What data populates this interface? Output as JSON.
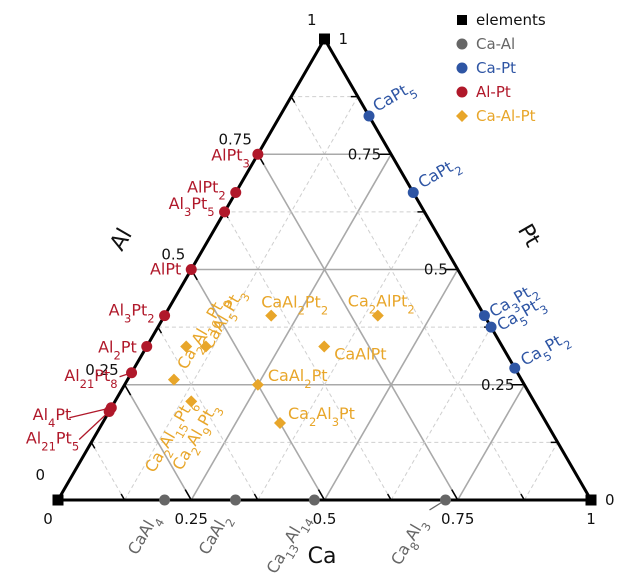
{
  "chart_data": {
    "type": "scatter",
    "subtype": "ternary",
    "axes": {
      "bottom": {
        "label": "Ca",
        "ticks": [
          "0",
          "0.25",
          "0.5",
          "0.75",
          "1"
        ]
      },
      "right": {
        "label": "Pt",
        "ticks": [
          "0",
          "0.25",
          "0.5",
          "0.75",
          "1"
        ]
      },
      "left": {
        "label": "Al",
        "ticks": [
          "1",
          "0.75",
          "0.5",
          "0.25",
          "0"
        ]
      }
    },
    "grid": {
      "major": 0.25,
      "minor": 0.125
    },
    "legend": {
      "position": "top-right",
      "items": [
        {
          "label": "elements",
          "color": "#000000",
          "marker": "square"
        },
        {
          "label": "Ca-Al",
          "color": "#666666",
          "marker": "circle"
        },
        {
          "label": "Ca-Pt",
          "color": "#2E55A4",
          "marker": "circle"
        },
        {
          "label": "Al-Pt",
          "color": "#B0182A",
          "marker": "circle"
        },
        {
          "label": "Ca-Al-Pt",
          "color": "#E8A62A",
          "marker": "diamond"
        }
      ]
    },
    "series": [
      {
        "name": "elements",
        "color": "#000000",
        "marker": "square",
        "points": [
          {
            "label": "",
            "ca": 0,
            "pt": 1
          },
          {
            "label": "",
            "ca": 0,
            "pt": 0
          },
          {
            "label": "",
            "ca": 1,
            "pt": 0
          }
        ]
      },
      {
        "name": "Ca-Al",
        "color": "#666666",
        "marker": "circle",
        "points": [
          {
            "label": "CaAl4",
            "ca": 0.2,
            "pt": 0
          },
          {
            "label": "CaAl2",
            "ca": 0.333,
            "pt": 0
          },
          {
            "label": "Ca13Al14",
            "ca": 0.481,
            "pt": 0
          },
          {
            "label": "Ca8Al3",
            "ca": 0.727,
            "pt": 0
          }
        ]
      },
      {
        "name": "Ca-Pt",
        "color": "#2E55A4",
        "marker": "circle",
        "points": [
          {
            "label": "CaPt5",
            "ca": 0.167,
            "pt": 0.833
          },
          {
            "label": "CaPt2",
            "ca": 0.333,
            "pt": 0.667
          },
          {
            "label": "Ca3Pt2",
            "ca": 0.6,
            "pt": 0.4
          },
          {
            "label": "Ca5Pt3",
            "ca": 0.625,
            "pt": 0.375
          },
          {
            "label": "Ca5Pt2",
            "ca": 0.714,
            "pt": 0.286
          }
        ]
      },
      {
        "name": "Al-Pt",
        "color": "#B0182A",
        "marker": "circle",
        "points": [
          {
            "label": "AlPt3",
            "ca": 0,
            "pt": 0.75
          },
          {
            "label": "AlPt2",
            "ca": 0,
            "pt": 0.667
          },
          {
            "label": "Al3Pt5",
            "ca": 0,
            "pt": 0.625
          },
          {
            "label": "AlPt",
            "ca": 0,
            "pt": 0.5
          },
          {
            "label": "Al3Pt2",
            "ca": 0,
            "pt": 0.4
          },
          {
            "label": "Al2Pt",
            "ca": 0,
            "pt": 0.333
          },
          {
            "label": "Al21Pt8",
            "ca": 0,
            "pt": 0.276
          },
          {
            "label": "Al4Pt",
            "ca": 0,
            "pt": 0.2
          },
          {
            "label": "Al21Pt5",
            "ca": 0,
            "pt": 0.192
          }
        ]
      },
      {
        "name": "Ca-Al-Pt",
        "color": "#E8A62A",
        "marker": "diamond",
        "points": [
          {
            "label": "Ca2Al16Pt9",
            "ca": 0.074,
            "pt": 0.333
          },
          {
            "label": "CaAl5Pt3",
            "ca": 0.111,
            "pt": 0.333
          },
          {
            "label": "Ca2Al15Pt6",
            "ca": 0.087,
            "pt": 0.261
          },
          {
            "label": "Ca2Al9Pt3",
            "ca": 0.143,
            "pt": 0.214
          },
          {
            "label": "CaAl2Pt",
            "ca": 0.25,
            "pt": 0.25
          },
          {
            "label": "CaAl2Pt2",
            "ca": 0.2,
            "pt": 0.4
          },
          {
            "label": "Ca2AlPt2",
            "ca": 0.4,
            "pt": 0.4
          },
          {
            "label": "CaAlPt",
            "ca": 0.333,
            "pt": 0.333
          },
          {
            "label": "Ca2Al3Pt",
            "ca": 0.333,
            "pt": 0.167
          }
        ]
      }
    ]
  }
}
